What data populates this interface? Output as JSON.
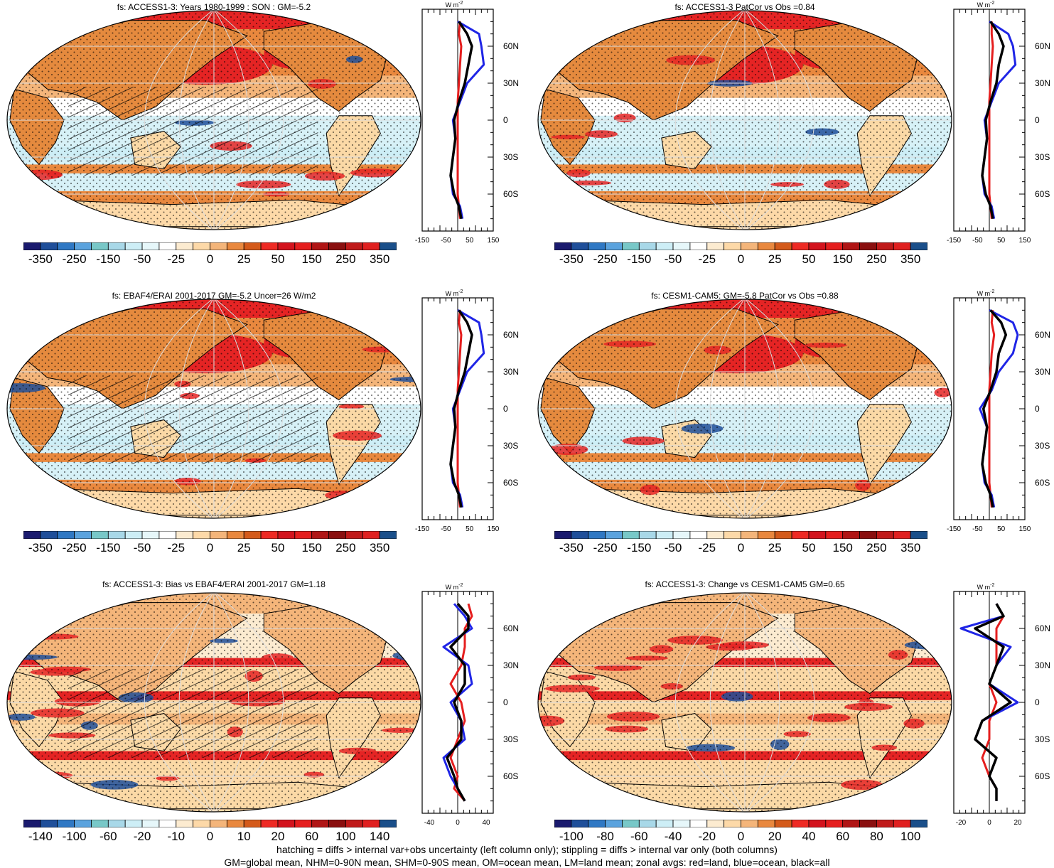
{
  "panels": [
    {
      "title": "fs: ACCESS1-3: Years 1980-1999 : SON : GM=-5.2",
      "colorbar_labels": [
        "-350",
        "-250",
        "-150",
        "-50",
        "-25",
        "0",
        "25",
        "50",
        "150",
        "250",
        "350"
      ],
      "zonal_x_ticks": [
        "-150",
        "-50",
        "50",
        "150"
      ],
      "zonal_x_range": [
        -150,
        150
      ],
      "hatched": true
    },
    {
      "title": "fs: ACCESS1-3 PatCor vs Obs =0.84",
      "colorbar_labels": [
        "-350",
        "-250",
        "-150",
        "-50",
        "-25",
        "0",
        "25",
        "50",
        "150",
        "250",
        "350"
      ],
      "zonal_x_ticks": [
        "-150",
        "-50",
        "50",
        "150"
      ],
      "zonal_x_range": [
        -150,
        150
      ],
      "hatched": false
    },
    {
      "title": "fs: EBAF4/ERAI 2001-2017 GM=-5.2 Uncer=26 W/m2",
      "colorbar_labels": [
        "-350",
        "-250",
        "-150",
        "-50",
        "-25",
        "0",
        "25",
        "50",
        "150",
        "250",
        "350"
      ],
      "zonal_x_ticks": [
        "-150",
        "-50",
        "50",
        "150"
      ],
      "zonal_x_range": [
        -150,
        150
      ],
      "hatched": true
    },
    {
      "title": "fs: CESM1-CAM5: GM=-5.8 PatCor vs Obs =0.88",
      "colorbar_labels": [
        "-350",
        "-250",
        "-150",
        "-50",
        "-25",
        "0",
        "25",
        "50",
        "150",
        "250",
        "350"
      ],
      "zonal_x_ticks": [
        "-150",
        "-50",
        "50",
        "150"
      ],
      "zonal_x_range": [
        -150,
        150
      ],
      "hatched": false
    },
    {
      "title": "fs: ACCESS1-3: Bias vs EBAF4/ERAI 2001-2017  GM=1.18",
      "colorbar_labels": [
        "-140",
        "-100",
        "-60",
        "-20",
        "-10",
        "0",
        "10",
        "20",
        "60",
        "100",
        "140"
      ],
      "zonal_x_ticks": [
        "-40",
        "0",
        "40"
      ],
      "zonal_x_range": [
        -50,
        50
      ],
      "hatched": true
    },
    {
      "title": "fs: ACCESS1-3: Change vs CESM1-CAM5 GM=0.65",
      "colorbar_labels": [
        "-100",
        "-80",
        "-60",
        "-40",
        "-20",
        "0",
        "20",
        "40",
        "60",
        "80",
        "100"
      ],
      "zonal_x_ticks": [
        "-20",
        "0",
        "20"
      ],
      "zonal_x_range": [
        -25,
        25
      ],
      "hatched": false
    }
  ],
  "zonal_unit": "W m",
  "zonal_unit_sup": "-2",
  "lat_labels": [
    "60N",
    "30N",
    "0",
    "30S",
    "60S"
  ],
  "colors": {
    "colorbar": [
      "#1a1a6e",
      "#1f4f9a",
      "#2f78c4",
      "#5ba3de",
      "#78c8c8",
      "#a8d8e8",
      "#cdeef6",
      "#e6f7fa",
      "#ffffff",
      "#fcebd0",
      "#fdd9a8",
      "#f4b57a",
      "#e9883e",
      "#d45a1a",
      "#ee2a24",
      "#d3131d",
      "#e51e1e",
      "#b01515",
      "#8a0f0f",
      "#c01a1a",
      "#e02020",
      "#1a4f8a"
    ],
    "land": "#e58a3e",
    "land_light": "#fbd9a6",
    "ocean": "#d7f1f7",
    "warm": "#e52424",
    "zonal_land": "#e51e1e",
    "zonal_ocean": "#1f25e6",
    "zonal_all": "#000000"
  },
  "footer": {
    "line1": "hatching = diffs > internal var+obs uncertainty (left column only); stippling = diffs > internal var only (both columns)",
    "line2": "GM=global mean, NHM=0-90N mean, SHM=0-90S mean, OM=ocean mean, LM=land mean; zonal avgs: red=land, blue=ocean, black=all"
  },
  "chart_data": [
    {
      "type": "heatmap",
      "title": "fs: ACCESS1-3: Years 1980-1999 : SON : GM=-5.2",
      "legend_levels": [
        -350,
        -250,
        -150,
        -50,
        -25,
        0,
        25,
        50,
        150,
        250,
        350
      ],
      "zonal": {
        "lat": [
          80,
          70,
          60,
          45,
          30,
          15,
          0,
          -15,
          -30,
          -45,
          -60,
          -70,
          -80
        ],
        "land": [
          10,
          5,
          15,
          10,
          5,
          0,
          0,
          0,
          0,
          0,
          0,
          5,
          10
        ],
        "ocean": [
          0,
          90,
          100,
          110,
          40,
          10,
          -20,
          -10,
          -20,
          -30,
          -20,
          10,
          20
        ],
        "all": [
          5,
          40,
          60,
          45,
          30,
          5,
          -15,
          -10,
          -20,
          -30,
          -15,
          5,
          15
        ]
      }
    },
    {
      "type": "heatmap",
      "title": "fs: ACCESS1-3 PatCor vs Obs =0.84",
      "legend_levels": [
        -350,
        -250,
        -150,
        -50,
        -25,
        0,
        25,
        50,
        150,
        250,
        350
      ],
      "zonal": {
        "lat": [
          80,
          70,
          60,
          45,
          30,
          15,
          0,
          -15,
          -30,
          -45,
          -60,
          -70,
          -80
        ],
        "land": [
          10,
          10,
          15,
          10,
          5,
          0,
          0,
          0,
          0,
          0,
          0,
          5,
          10
        ],
        "ocean": [
          0,
          80,
          100,
          110,
          40,
          10,
          -20,
          -10,
          -20,
          -30,
          -20,
          10,
          20
        ],
        "all": [
          5,
          40,
          60,
          40,
          30,
          5,
          -15,
          -10,
          -20,
          -30,
          -15,
          5,
          15
        ]
      }
    },
    {
      "type": "heatmap",
      "title": "fs: EBAF4/ERAI 2001-2017 GM=-5.2 Uncer=26 W/m2",
      "legend_levels": [
        -350,
        -250,
        -150,
        -50,
        -25,
        0,
        25,
        50,
        150,
        250,
        350
      ],
      "zonal": {
        "lat": [
          80,
          70,
          60,
          45,
          30,
          15,
          0,
          -15,
          -30,
          -45,
          -60,
          -70,
          -80
        ],
        "land": [
          10,
          5,
          15,
          10,
          5,
          0,
          0,
          0,
          0,
          0,
          0,
          5,
          10
        ],
        "ocean": [
          0,
          90,
          100,
          110,
          40,
          10,
          -20,
          -10,
          -20,
          -30,
          -20,
          10,
          20
        ],
        "all": [
          5,
          40,
          60,
          45,
          30,
          5,
          -15,
          -10,
          -20,
          -30,
          -15,
          5,
          15
        ]
      }
    },
    {
      "type": "heatmap",
      "title": "fs: CESM1-CAM5: GM=-5.8 PatCor vs Obs =0.88",
      "legend_levels": [
        -350,
        -250,
        -150,
        -50,
        -25,
        0,
        25,
        50,
        150,
        250,
        350
      ],
      "zonal": {
        "lat": [
          80,
          70,
          60,
          45,
          30,
          15,
          0,
          -15,
          -30,
          -45,
          -60,
          -70,
          -80
        ],
        "land": [
          15,
          10,
          20,
          10,
          5,
          0,
          0,
          0,
          0,
          0,
          0,
          5,
          10
        ],
        "ocean": [
          0,
          100,
          120,
          100,
          40,
          10,
          -40,
          -10,
          -20,
          -30,
          -20,
          10,
          20
        ],
        "all": [
          5,
          50,
          70,
          40,
          30,
          5,
          -25,
          -10,
          -20,
          -30,
          -15,
          5,
          15
        ]
      }
    },
    {
      "type": "heatmap",
      "title": "fs: ACCESS1-3: Bias vs EBAF4/ERAI 2001-2017  GM=1.18",
      "legend_levels": [
        -140,
        -100,
        -60,
        -20,
        -10,
        0,
        10,
        20,
        60,
        100,
        140
      ],
      "zonal": {
        "lat": [
          80,
          70,
          60,
          45,
          30,
          15,
          0,
          -15,
          -30,
          -45,
          -60,
          -70,
          -80
        ],
        "land": [
          15,
          20,
          10,
          10,
          5,
          -10,
          5,
          10,
          0,
          -10,
          0,
          -5,
          10
        ],
        "ocean": [
          -5,
          10,
          20,
          -20,
          15,
          20,
          -10,
          5,
          10,
          -20,
          -10,
          0,
          10
        ],
        "all": [
          0,
          15,
          15,
          -10,
          10,
          10,
          -5,
          5,
          5,
          -15,
          -5,
          0,
          10
        ]
      }
    },
    {
      "type": "heatmap",
      "title": "fs: ACCESS1-3: Change vs CESM1-CAM5 GM=0.65",
      "legend_levels": [
        -100,
        -80,
        -60,
        -40,
        -20,
        0,
        20,
        40,
        60,
        80,
        100
      ],
      "zonal": {
        "lat": [
          80,
          70,
          60,
          45,
          30,
          15,
          0,
          -15,
          -30,
          -45,
          -60,
          -70,
          -80
        ],
        "land": [
          5,
          10,
          5,
          5,
          5,
          0,
          5,
          0,
          0,
          -5,
          0,
          5,
          5
        ],
        "ocean": [
          5,
          10,
          -20,
          15,
          5,
          0,
          20,
          -5,
          -10,
          5,
          0,
          5,
          5
        ],
        "all": [
          5,
          10,
          -10,
          10,
          5,
          0,
          15,
          -5,
          -10,
          5,
          0,
          5,
          5
        ]
      }
    }
  ]
}
